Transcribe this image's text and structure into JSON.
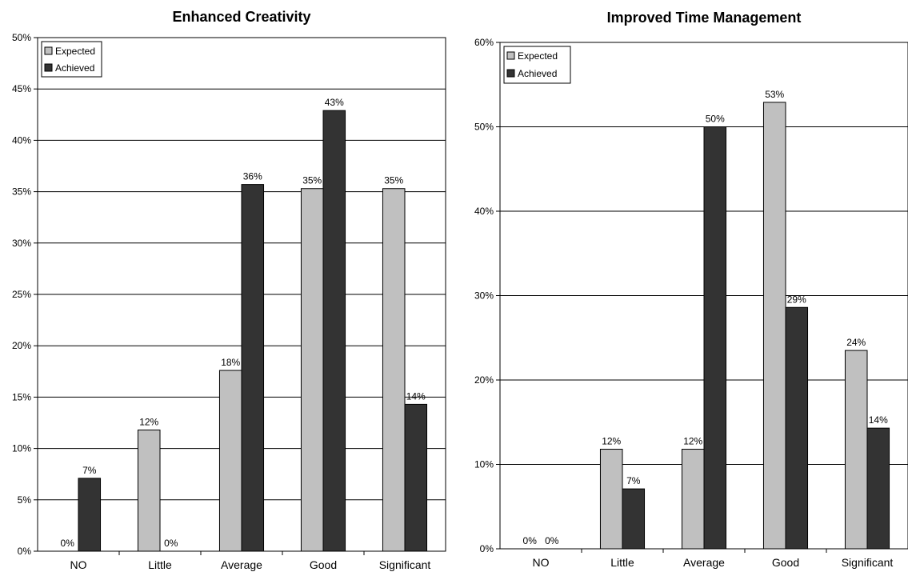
{
  "chart_data": [
    {
      "type": "bar",
      "title": "Enhanced Creativity",
      "categories": [
        "NO",
        "Little",
        "Average",
        "Good",
        "Significant"
      ],
      "ylim": [
        0,
        50
      ],
      "yticks": [
        0,
        5,
        10,
        15,
        20,
        25,
        30,
        35,
        40,
        45,
        50
      ],
      "ytick_labels": [
        "0%",
        "5%",
        "10%",
        "15%",
        "20%",
        "25%",
        "30%",
        "35%",
        "40%",
        "45%",
        "50%"
      ],
      "grid": true,
      "legend_position": "top-left",
      "series": [
        {
          "name": "Expected",
          "color": "#c0c0c0",
          "values": [
            0,
            11.8,
            17.6,
            35.3,
            35.3
          ],
          "labels": [
            "0%",
            "12%",
            "18%",
            "35%",
            "35%"
          ]
        },
        {
          "name": "Achieved",
          "color": "#333333",
          "values": [
            7.1,
            0,
            35.7,
            42.9,
            14.3
          ],
          "labels": [
            "7%",
            "0%",
            "36%",
            "43%",
            "14%"
          ]
        }
      ]
    },
    {
      "type": "bar",
      "title": "Improved Time Management",
      "categories": [
        "NO",
        "Little",
        "Average",
        "Good",
        "Significant"
      ],
      "ylim": [
        0,
        60
      ],
      "yticks": [
        0,
        10,
        20,
        30,
        40,
        50,
        60
      ],
      "ytick_labels": [
        "0%",
        "10%",
        "20%",
        "30%",
        "40%",
        "50%",
        "60%"
      ],
      "grid": true,
      "legend_position": "top-left",
      "series": [
        {
          "name": "Expected",
          "color": "#c0c0c0",
          "values": [
            0,
            11.8,
            11.8,
            52.9,
            23.5
          ],
          "labels": [
            "0%",
            "12%",
            "12%",
            "53%",
            "24%"
          ]
        },
        {
          "name": "Achieved",
          "color": "#333333",
          "values": [
            0,
            7.1,
            50,
            28.6,
            14.3
          ],
          "labels": [
            "0%",
            "7%",
            "50%",
            "29%",
            "14%"
          ]
        }
      ]
    }
  ]
}
